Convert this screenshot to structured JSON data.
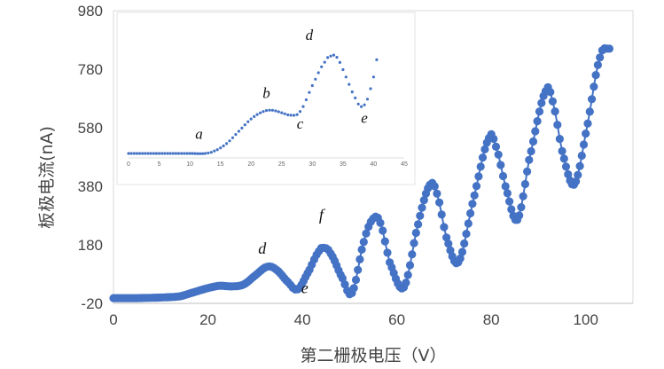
{
  "chart_data": [
    {
      "type": "scatter",
      "xlabel": "第二栅极电压（V）",
      "ylabel": "板极电流(nA)",
      "xlim": [
        0,
        110
      ],
      "ylim": [
        -20,
        980
      ],
      "x_ticks": [
        "0",
        "20",
        "40",
        "60",
        "80",
        "100"
      ],
      "y_ticks": [
        "-20",
        "180",
        "380",
        "580",
        "780",
        "980"
      ],
      "grid": false,
      "marker_color": "#4472c4",
      "line": true,
      "series": [
        {
          "points": [
            [
              0,
              -2
            ],
            [
              5,
              -2
            ],
            [
              10,
              0
            ],
            [
              14,
              4
            ],
            [
              17,
              18
            ],
            [
              20,
              32
            ],
            [
              22.5,
              40
            ],
            [
              25,
              38
            ],
            [
              27.5,
              44
            ],
            [
              30,
              75
            ],
            [
              32.5,
              105
            ],
            [
              34.5,
              95
            ],
            [
              37,
              52
            ],
            [
              39,
              28
            ],
            [
              41.5,
              95
            ],
            [
              43.5,
              158
            ],
            [
              44.5,
              170
            ],
            [
              46,
              150
            ],
            [
              48.5,
              65
            ],
            [
              50.5,
              15
            ],
            [
              53,
              190
            ],
            [
              55,
              270
            ],
            [
              56.5,
              255
            ],
            [
              58.5,
              120
            ],
            [
              61.5,
              35
            ],
            [
              64.5,
              250
            ],
            [
              67,
              385
            ],
            [
              68.5,
              355
            ],
            [
              70.5,
              205
            ],
            [
              73,
              120
            ],
            [
              76,
              320
            ],
            [
              79.5,
              545
            ],
            [
              81,
              515
            ],
            [
              83,
              380
            ],
            [
              85.5,
              265
            ],
            [
              88,
              470
            ],
            [
              91.5,
              705
            ],
            [
              93,
              670
            ],
            [
              95,
              500
            ],
            [
              97.5,
              385
            ],
            [
              100,
              560
            ],
            [
              103,
              820
            ],
            [
              105,
              850
            ]
          ]
        }
      ],
      "annotations": [
        {
          "text": "d",
          "x": 31.5,
          "y": 150
        },
        {
          "text": "e",
          "x": 40.5,
          "y": 15
        },
        {
          "text": "f",
          "x": 44,
          "y": 265
        }
      ]
    },
    {
      "type": "scatter",
      "inset": true,
      "xlim": [
        0,
        45
      ],
      "x_ticks": [
        "0",
        "5",
        "10",
        "15",
        "20",
        "25",
        "30",
        "35",
        "40",
        "45"
      ],
      "marker_color": "#4472c4",
      "series": [
        {
          "points": [
            [
              0,
              0
            ],
            [
              5,
              0
            ],
            [
              10,
              0
            ],
            [
              12.5,
              0
            ],
            [
              14,
              0.02
            ],
            [
              16,
              0.08
            ],
            [
              18,
              0.18
            ],
            [
              20,
              0.28
            ],
            [
              22,
              0.34
            ],
            [
              23.5,
              0.35
            ],
            [
              25,
              0.33
            ],
            [
              26.5,
              0.31
            ],
            [
              28,
              0.34
            ],
            [
              30,
              0.55
            ],
            [
              32,
              0.74
            ],
            [
              33,
              0.79
            ],
            [
              34,
              0.78
            ],
            [
              35.5,
              0.62
            ],
            [
              37,
              0.45
            ],
            [
              38,
              0.38
            ],
            [
              39,
              0.44
            ],
            [
              40,
              0.62
            ],
            [
              40.5,
              0.76
            ]
          ]
        }
      ],
      "annotations": [
        {
          "text": "a",
          "x": 11.5,
          "y": 0.12
        },
        {
          "text": "b",
          "x": 22.5,
          "y": 0.45
        },
        {
          "text": "c",
          "x": 28,
          "y": 0.2
        },
        {
          "text": "d",
          "x": 29.5,
          "y": 0.92
        },
        {
          "text": "e",
          "x": 38.5,
          "y": 0.25
        }
      ]
    }
  ]
}
